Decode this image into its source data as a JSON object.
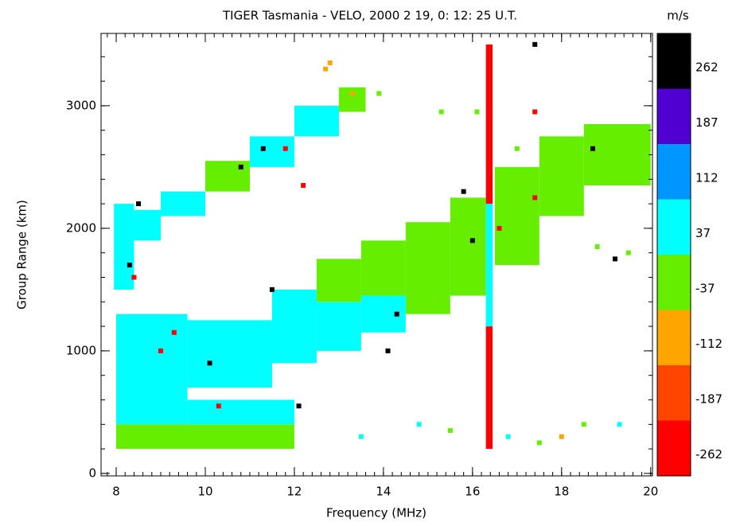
{
  "chart_data": {
    "type": "range-time",
    "title": "TIGER Tasmania - VELO, 2000 2 19, 0: 12: 25 U.T.",
    "x_label": "Frequency (MHz)",
    "y_label": "Group Range (km)",
    "colorbar_label": "m/s",
    "xlim": [
      7.66,
      20.04
    ],
    "ylim": [
      -20,
      3590
    ],
    "xticks": [
      8,
      10,
      12,
      14,
      16,
      18,
      20
    ],
    "yticks": [
      0,
      1000,
      2000,
      3000
    ],
    "levels": [
      -262,
      -187,
      -112,
      -37,
      37,
      112,
      187,
      262
    ],
    "level_colors": [
      "#ff0000",
      "#ff4500",
      "#ffa500",
      "#66ee00",
      "#00ffff",
      "#0096ff",
      "#5000d0",
      "#000000"
    ],
    "regions": [
      {
        "x": [
          8.0,
          9.6
        ],
        "y": [
          400,
          1300
        ],
        "v": 37
      },
      {
        "x": [
          8.0,
          12.0
        ],
        "y": [
          200,
          400
        ],
        "v": -37
      },
      {
        "x": [
          9.6,
          11.5
        ],
        "y": [
          700,
          1250
        ],
        "v": 37
      },
      {
        "x": [
          9.6,
          12.0
        ],
        "y": [
          400,
          600
        ],
        "v": 37
      },
      {
        "x": [
          11.5,
          12.5
        ],
        "y": [
          900,
          1500
        ],
        "v": 37
      },
      {
        "x": [
          12.5,
          13.5
        ],
        "y": [
          1000,
          1400
        ],
        "v": 37
      },
      {
        "x": [
          12.5,
          13.5
        ],
        "y": [
          1400,
          1750
        ],
        "v": -37
      },
      {
        "x": [
          13.5,
          14.5
        ],
        "y": [
          1150,
          1450
        ],
        "v": 37
      },
      {
        "x": [
          13.5,
          14.5
        ],
        "y": [
          1450,
          1900
        ],
        "v": -37
      },
      {
        "x": [
          14.5,
          15.5
        ],
        "y": [
          1300,
          2050
        ],
        "v": -37
      },
      {
        "x": [
          15.5,
          16.3
        ],
        "y": [
          1450,
          2250
        ],
        "v": -37
      },
      {
        "x": [
          16.5,
          17.5
        ],
        "y": [
          1700,
          2500
        ],
        "v": -37
      },
      {
        "x": [
          17.5,
          18.5
        ],
        "y": [
          2100,
          2750
        ],
        "v": -37
      },
      {
        "x": [
          18.5,
          20.0
        ],
        "y": [
          2350,
          2850
        ],
        "v": -37
      },
      {
        "x": [
          7.95,
          8.4
        ],
        "y": [
          1500,
          2200
        ],
        "v": 37
      },
      {
        "x": [
          8.4,
          9.0
        ],
        "y": [
          1900,
          2150
        ],
        "v": 37
      },
      {
        "x": [
          9.0,
          10.0
        ],
        "y": [
          2100,
          2300
        ],
        "v": 37
      },
      {
        "x": [
          10.0,
          11.0
        ],
        "y": [
          2300,
          2550
        ],
        "v": -37
      },
      {
        "x": [
          11.0,
          12.0
        ],
        "y": [
          2500,
          2750
        ],
        "v": 37
      },
      {
        "x": [
          12.0,
          13.0
        ],
        "y": [
          2750,
          3000
        ],
        "v": 37
      },
      {
        "x": [
          13.0,
          13.6
        ],
        "y": [
          2950,
          3150
        ],
        "v": -37
      },
      {
        "x": [
          16.3,
          16.45
        ],
        "y": [
          200,
          1200
        ],
        "v": -262
      },
      {
        "x": [
          16.3,
          16.45
        ],
        "y": [
          1200,
          2200
        ],
        "v": 37
      },
      {
        "x": [
          16.3,
          16.45
        ],
        "y": [
          2200,
          3500
        ],
        "v": -262
      }
    ],
    "points": [
      [
        8.3,
        1700,
        262
      ],
      [
        8.5,
        2200,
        262
      ],
      [
        9.0,
        1000,
        -262
      ],
      [
        10.1,
        900,
        262
      ],
      [
        11.5,
        1500,
        262
      ],
      [
        11.3,
        2650,
        262
      ],
      [
        12.8,
        3350,
        -112
      ],
      [
        12.7,
        3300,
        -112
      ],
      [
        13.3,
        3100,
        -112
      ],
      [
        14.1,
        1000,
        262
      ],
      [
        14.3,
        1300,
        262
      ],
      [
        15.8,
        2300,
        262
      ],
      [
        16.6,
        2000,
        -262
      ],
      [
        17.4,
        2250,
        -262
      ],
      [
        17.4,
        2950,
        -262
      ],
      [
        17.4,
        3500,
        262
      ],
      [
        18.7,
        2650,
        262
      ],
      [
        19.2,
        1750,
        262
      ],
      [
        10.8,
        2500,
        262
      ],
      [
        12.2,
        2350,
        -262
      ],
      [
        13.5,
        300,
        37
      ],
      [
        14.8,
        400,
        37
      ],
      [
        15.5,
        350,
        -37
      ],
      [
        16.8,
        300,
        37
      ],
      [
        17.5,
        250,
        -37
      ],
      [
        18.0,
        300,
        -112
      ],
      [
        18.5,
        400,
        -37
      ],
      [
        19.3,
        400,
        37
      ],
      [
        17.0,
        2650,
        -37
      ],
      [
        16.1,
        2950,
        -37
      ],
      [
        15.3,
        2950,
        -37
      ],
      [
        13.9,
        3100,
        -37
      ],
      [
        18.8,
        1850,
        -37
      ],
      [
        19.5,
        1800,
        -37
      ],
      [
        10.3,
        550,
        -262
      ],
      [
        11.8,
        2650,
        -262
      ],
      [
        9.3,
        1150,
        -262
      ],
      [
        8.4,
        1600,
        -262
      ],
      [
        16.0,
        1900,
        262
      ],
      [
        12.1,
        550,
        262
      ]
    ]
  }
}
